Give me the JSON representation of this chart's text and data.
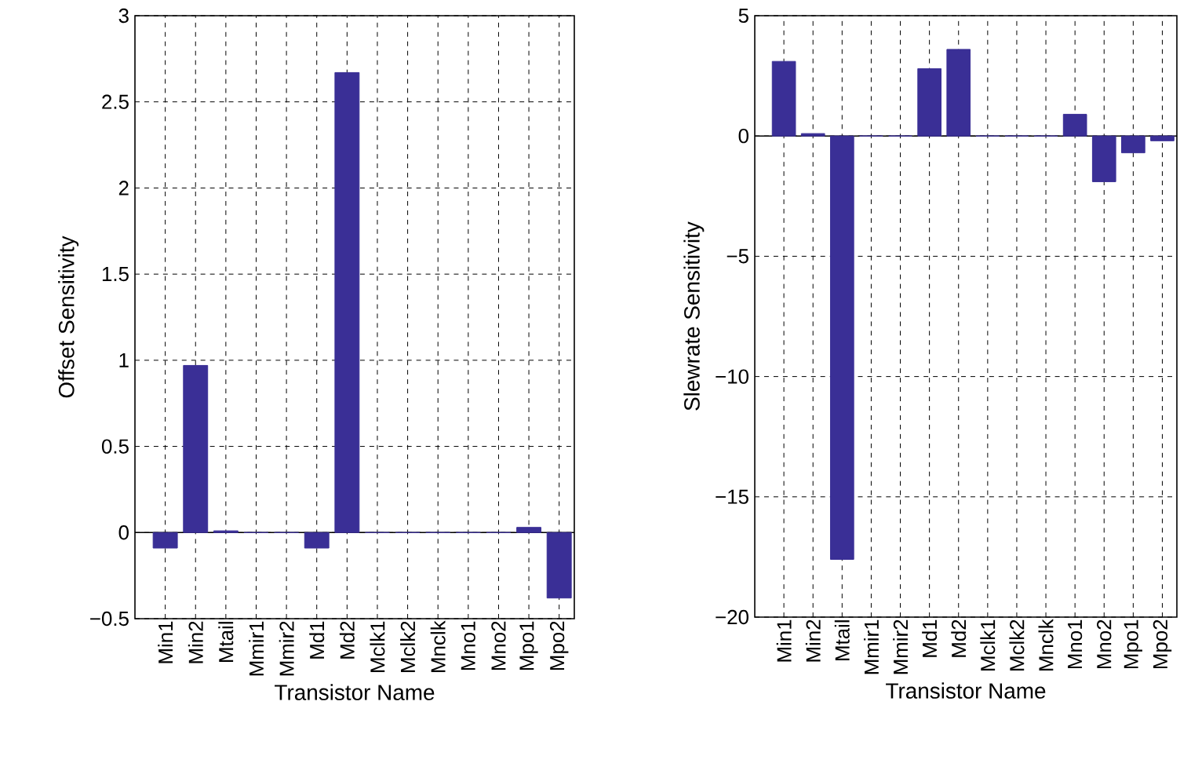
{
  "chart_data": [
    {
      "type": "bar",
      "xlabel": "Transistor Name",
      "ylabel": "Offset Sensitivity",
      "categories": [
        "Min1",
        "Min2",
        "Mtail",
        "Mmir1",
        "Mmir2",
        "Md1",
        "Md2",
        "Mclk1",
        "Mclk2",
        "Mnclk",
        "Mno1",
        "Mno2",
        "Mpo1",
        "Mpo2"
      ],
      "values": [
        -0.09,
        0.97,
        0.01,
        0,
        0,
        -0.09,
        2.67,
        0,
        0,
        0,
        0,
        0,
        0.03,
        -0.38
      ],
      "color": "#3a2f96",
      "ylim": [
        -0.5,
        3
      ],
      "yticks": [
        {
          "value": -0.5,
          "label": "−0.5"
        },
        0,
        0.5,
        1,
        1.5,
        2,
        2.5,
        3
      ],
      "grid": true
    },
    {
      "type": "bar",
      "xlabel": "Transistor Name",
      "ylabel": "Slewrate Sensitivity",
      "categories": [
        "Min1",
        "Min2",
        "Mtail",
        "Mmir1",
        "Mmir2",
        "Md1",
        "Md2",
        "Mclk1",
        "Mclk2",
        "Mnclk",
        "Mno1",
        "Mno2",
        "Mpo1",
        "Mpo2"
      ],
      "values": [
        3.1,
        0.1,
        -17.6,
        0,
        0,
        2.8,
        3.6,
        0,
        0,
        0,
        0.9,
        -1.9,
        -0.7,
        -0.2
      ],
      "color": "#3a2f96",
      "ylim": [
        -20,
        5
      ],
      "yticks": [
        {
          "value": -20,
          "label": "−20"
        },
        {
          "value": -15,
          "label": "−15"
        },
        {
          "value": -10,
          "label": "−10"
        },
        {
          "value": -5,
          "label": "−5"
        },
        0,
        5
      ],
      "grid": true
    }
  ]
}
